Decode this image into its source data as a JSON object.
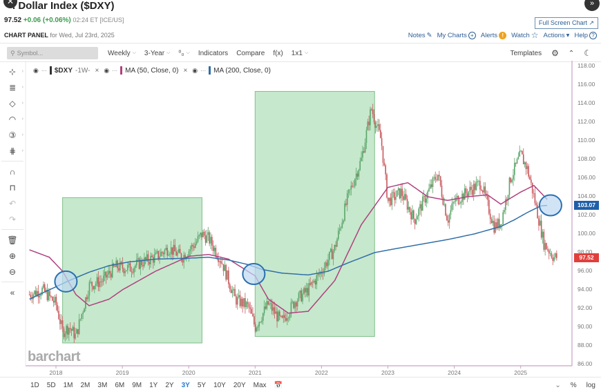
{
  "header": {
    "close_icon": "✕",
    "expand_icon": "»",
    "title": ". Dollar Index ($DXY)",
    "last_price": "97.52",
    "change": "+0.06 (+0.06%)",
    "time": "02:24 ET [ICE/US]",
    "full_screen_label": "Full Screen Chart ↗",
    "panel_label": "CHART PANEL",
    "panel_date": "for Wed, Jul 23rd, 2025",
    "actions": [
      {
        "label": "Notes",
        "icon": "✎"
      },
      {
        "label": "My Charts",
        "icon": "+"
      },
      {
        "label": "Alerts",
        "icon": "!"
      },
      {
        "label": "Watch",
        "icon": "☆"
      },
      {
        "label": "Actions",
        "icon": "▾"
      },
      {
        "label": "Help",
        "icon": "?"
      }
    ]
  },
  "toolbar": {
    "search_placeholder": "Symbol...",
    "search_icon": "⚲",
    "interval": "Weekly",
    "period": "3-Year",
    "chart_type_icon": "⁰₀",
    "indicators": "Indicators",
    "compare": "Compare",
    "fx": "f(x)",
    "layout": "1x1",
    "templates": "Templates",
    "settings_icon": "⚙",
    "collapse_icon": "⌃",
    "theme_icon": "☾"
  },
  "left_tools": [
    {
      "name": "crosshair-tool",
      "glyph": "⊹",
      "sub": true
    },
    {
      "name": "fib-tool",
      "glyph": "≣",
      "sub": true
    },
    {
      "name": "shape-tool",
      "glyph": "◇",
      "sub": true
    },
    {
      "name": "arc-tool",
      "glyph": "◠",
      "sub": true
    },
    {
      "name": "count-tool",
      "glyph": "③",
      "sub": true
    },
    {
      "name": "pattern-tool",
      "glyph": "⋕",
      "sub": true
    },
    {
      "name": "magnet-tool",
      "glyph": "∩",
      "sub": false
    },
    {
      "name": "lock-tool",
      "glyph": "⊓",
      "sub": false
    },
    {
      "name": "undo-tool",
      "glyph": "↶",
      "sub": false,
      "dim": true
    },
    {
      "name": "redo-tool",
      "glyph": "↷",
      "sub": false,
      "dim": true
    },
    {
      "name": "trash-tool",
      "glyph": "🗑",
      "sub": false
    },
    {
      "name": "zoom-in-tool",
      "glyph": "⊕",
      "sub": false
    },
    {
      "name": "zoom-out-tool",
      "glyph": "⊖",
      "sub": false
    },
    {
      "name": "collapse-tool",
      "glyph": "«",
      "sub": false
    }
  ],
  "legend": {
    "symbol": "$DXY",
    "timeframe": "-1W-",
    "ma50": "MA (50, Close, 0)",
    "ma200": "MA (200, Close, 0)",
    "colors": {
      "symbol": "#333333",
      "ma50": "#b0407f",
      "ma200": "#2f6ea8"
    }
  },
  "bottom_bar": {
    "ranges": [
      "1D",
      "5D",
      "1M",
      "2M",
      "3M",
      "6M",
      "9M",
      "1Y",
      "2Y",
      "3Y",
      "5Y",
      "10Y",
      "20Y",
      "Max"
    ],
    "active_range": "3Y",
    "calendar_icon": "📅",
    "expand_icon": "¥",
    "percent": "%",
    "log": "log"
  },
  "watermark": "barchart",
  "colors": {
    "up": "#5aa469",
    "down": "#c9575c",
    "ma50": "#b0407f",
    "ma200": "#2f6ea8",
    "highlight_box": "#a8dcb0",
    "circle_fill": "#bcd9f2",
    "circle_stroke": "#2a6fb0",
    "ma200_tag": "#1f5fa8",
    "price_tag": "#e0403c",
    "axis": "#c9a0c4"
  },
  "chart_data": {
    "type": "candlestick",
    "title": "U.S. Dollar Index ($DXY) Weekly",
    "xlabel": "",
    "ylabel": "",
    "ylim": [
      86,
      118
    ],
    "y_ticks": [
      "118.00",
      "116.00",
      "114.00",
      "112.00",
      "110.00",
      "108.00",
      "106.00",
      "104.00",
      "102.00",
      "100.00",
      "98.00",
      "96.00",
      "94.00",
      "92.00",
      "90.00",
      "88.00",
      "86.00"
    ],
    "x_ticks": [
      "2018",
      "2019",
      "2020",
      "2021",
      "2022",
      "2023",
      "2024",
      "2025"
    ],
    "price_labels": {
      "ma200": "103.07",
      "last": "97.52"
    },
    "series": [
      {
        "name": "$DXY close (approx)",
        "x": [
          2017.6,
          2017.8,
          2018.0,
          2018.1,
          2018.2,
          2018.3,
          2018.5,
          2018.7,
          2018.9,
          2019.1,
          2019.3,
          2019.5,
          2019.7,
          2019.9,
          2020.1,
          2020.2,
          2020.3,
          2020.5,
          2020.7,
          2020.9,
          2021.0,
          2021.2,
          2021.4,
          2021.6,
          2021.8,
          2022.0,
          2022.2,
          2022.4,
          2022.6,
          2022.75,
          2022.9,
          2023.0,
          2023.2,
          2023.4,
          2023.5,
          2023.75,
          2023.9,
          2024.0,
          2024.2,
          2024.4,
          2024.6,
          2024.7,
          2024.85,
          2025.0,
          2025.1,
          2025.2,
          2025.35,
          2025.5
        ],
        "values": [
          93.5,
          94.0,
          92.5,
          89.5,
          90.0,
          89.0,
          94.5,
          95.0,
          96.5,
          96.3,
          97.0,
          97.5,
          98.5,
          97.5,
          99.0,
          100.0,
          99.5,
          97.0,
          93.0,
          92.2,
          90.0,
          92.5,
          90.5,
          92.8,
          94.0,
          96.0,
          98.5,
          104.0,
          108.0,
          113.5,
          110.0,
          103.5,
          104.5,
          101.5,
          103.0,
          106.5,
          101.5,
          103.5,
          104.5,
          105.5,
          100.8,
          101.2,
          106.0,
          108.5,
          107.0,
          104.0,
          99.0,
          97.5
        ]
      },
      {
        "name": "MA (50, Close, 0)",
        "x": [
          2017.6,
          2017.9,
          2018.1,
          2018.3,
          2018.5,
          2018.8,
          2019.0,
          2019.5,
          2020.0,
          2020.3,
          2020.6,
          2021.0,
          2021.2,
          2021.5,
          2021.8,
          2022.2,
          2022.6,
          2022.8,
          2023.0,
          2023.3,
          2023.6,
          2023.9,
          2024.2,
          2024.5,
          2024.7,
          2025.0,
          2025.2,
          2025.4
        ],
        "values": [
          98.3,
          97.5,
          96.0,
          93.5,
          92.3,
          93.0,
          94.0,
          96.0,
          97.6,
          97.8,
          97.3,
          95.5,
          93.0,
          91.5,
          91.7,
          95.0,
          101.0,
          103.0,
          105.0,
          105.5,
          104.0,
          103.6,
          104.0,
          104.2,
          103.2,
          104.5,
          105.2,
          103.7
        ]
      },
      {
        "name": "MA (200, Close, 0)",
        "x": [
          2017.6,
          2017.9,
          2018.2,
          2018.5,
          2018.8,
          2019.1,
          2019.5,
          2020.0,
          2020.3,
          2020.6,
          2020.9,
          2021.1,
          2021.4,
          2021.8,
          2022.1,
          2022.4,
          2022.8,
          2023.1,
          2023.5,
          2023.9,
          2024.3,
          2024.7,
          2024.9,
          2025.1,
          2025.3,
          2025.4
        ],
        "values": [
          93.0,
          94.0,
          95.0,
          95.9,
          96.6,
          97.0,
          97.3,
          97.4,
          97.5,
          97.2,
          96.7,
          96.2,
          95.8,
          95.6,
          96.0,
          96.9,
          98.0,
          98.4,
          98.9,
          99.4,
          100.0,
          100.8,
          101.5,
          102.3,
          103.0,
          103.07
        ]
      }
    ],
    "annotations": [
      {
        "type": "rectangle",
        "label": "highlight 1",
        "x_range": [
          2018.1,
          2020.2
        ],
        "y_range": [
          88.3,
          103.9
        ]
      },
      {
        "type": "rectangle",
        "label": "highlight 2",
        "x_range": [
          2021.0,
          2022.8
        ],
        "y_range": [
          89.0,
          115.3
        ]
      },
      {
        "type": "circle",
        "label": "MA crossover 2018",
        "x": 2018.15,
        "y": 94.9
      },
      {
        "type": "circle",
        "label": "MA crossover 2020",
        "x": 2020.98,
        "y": 95.7
      },
      {
        "type": "circle",
        "label": "MA convergence 2025",
        "x": 2025.45,
        "y": 103.07
      }
    ]
  }
}
